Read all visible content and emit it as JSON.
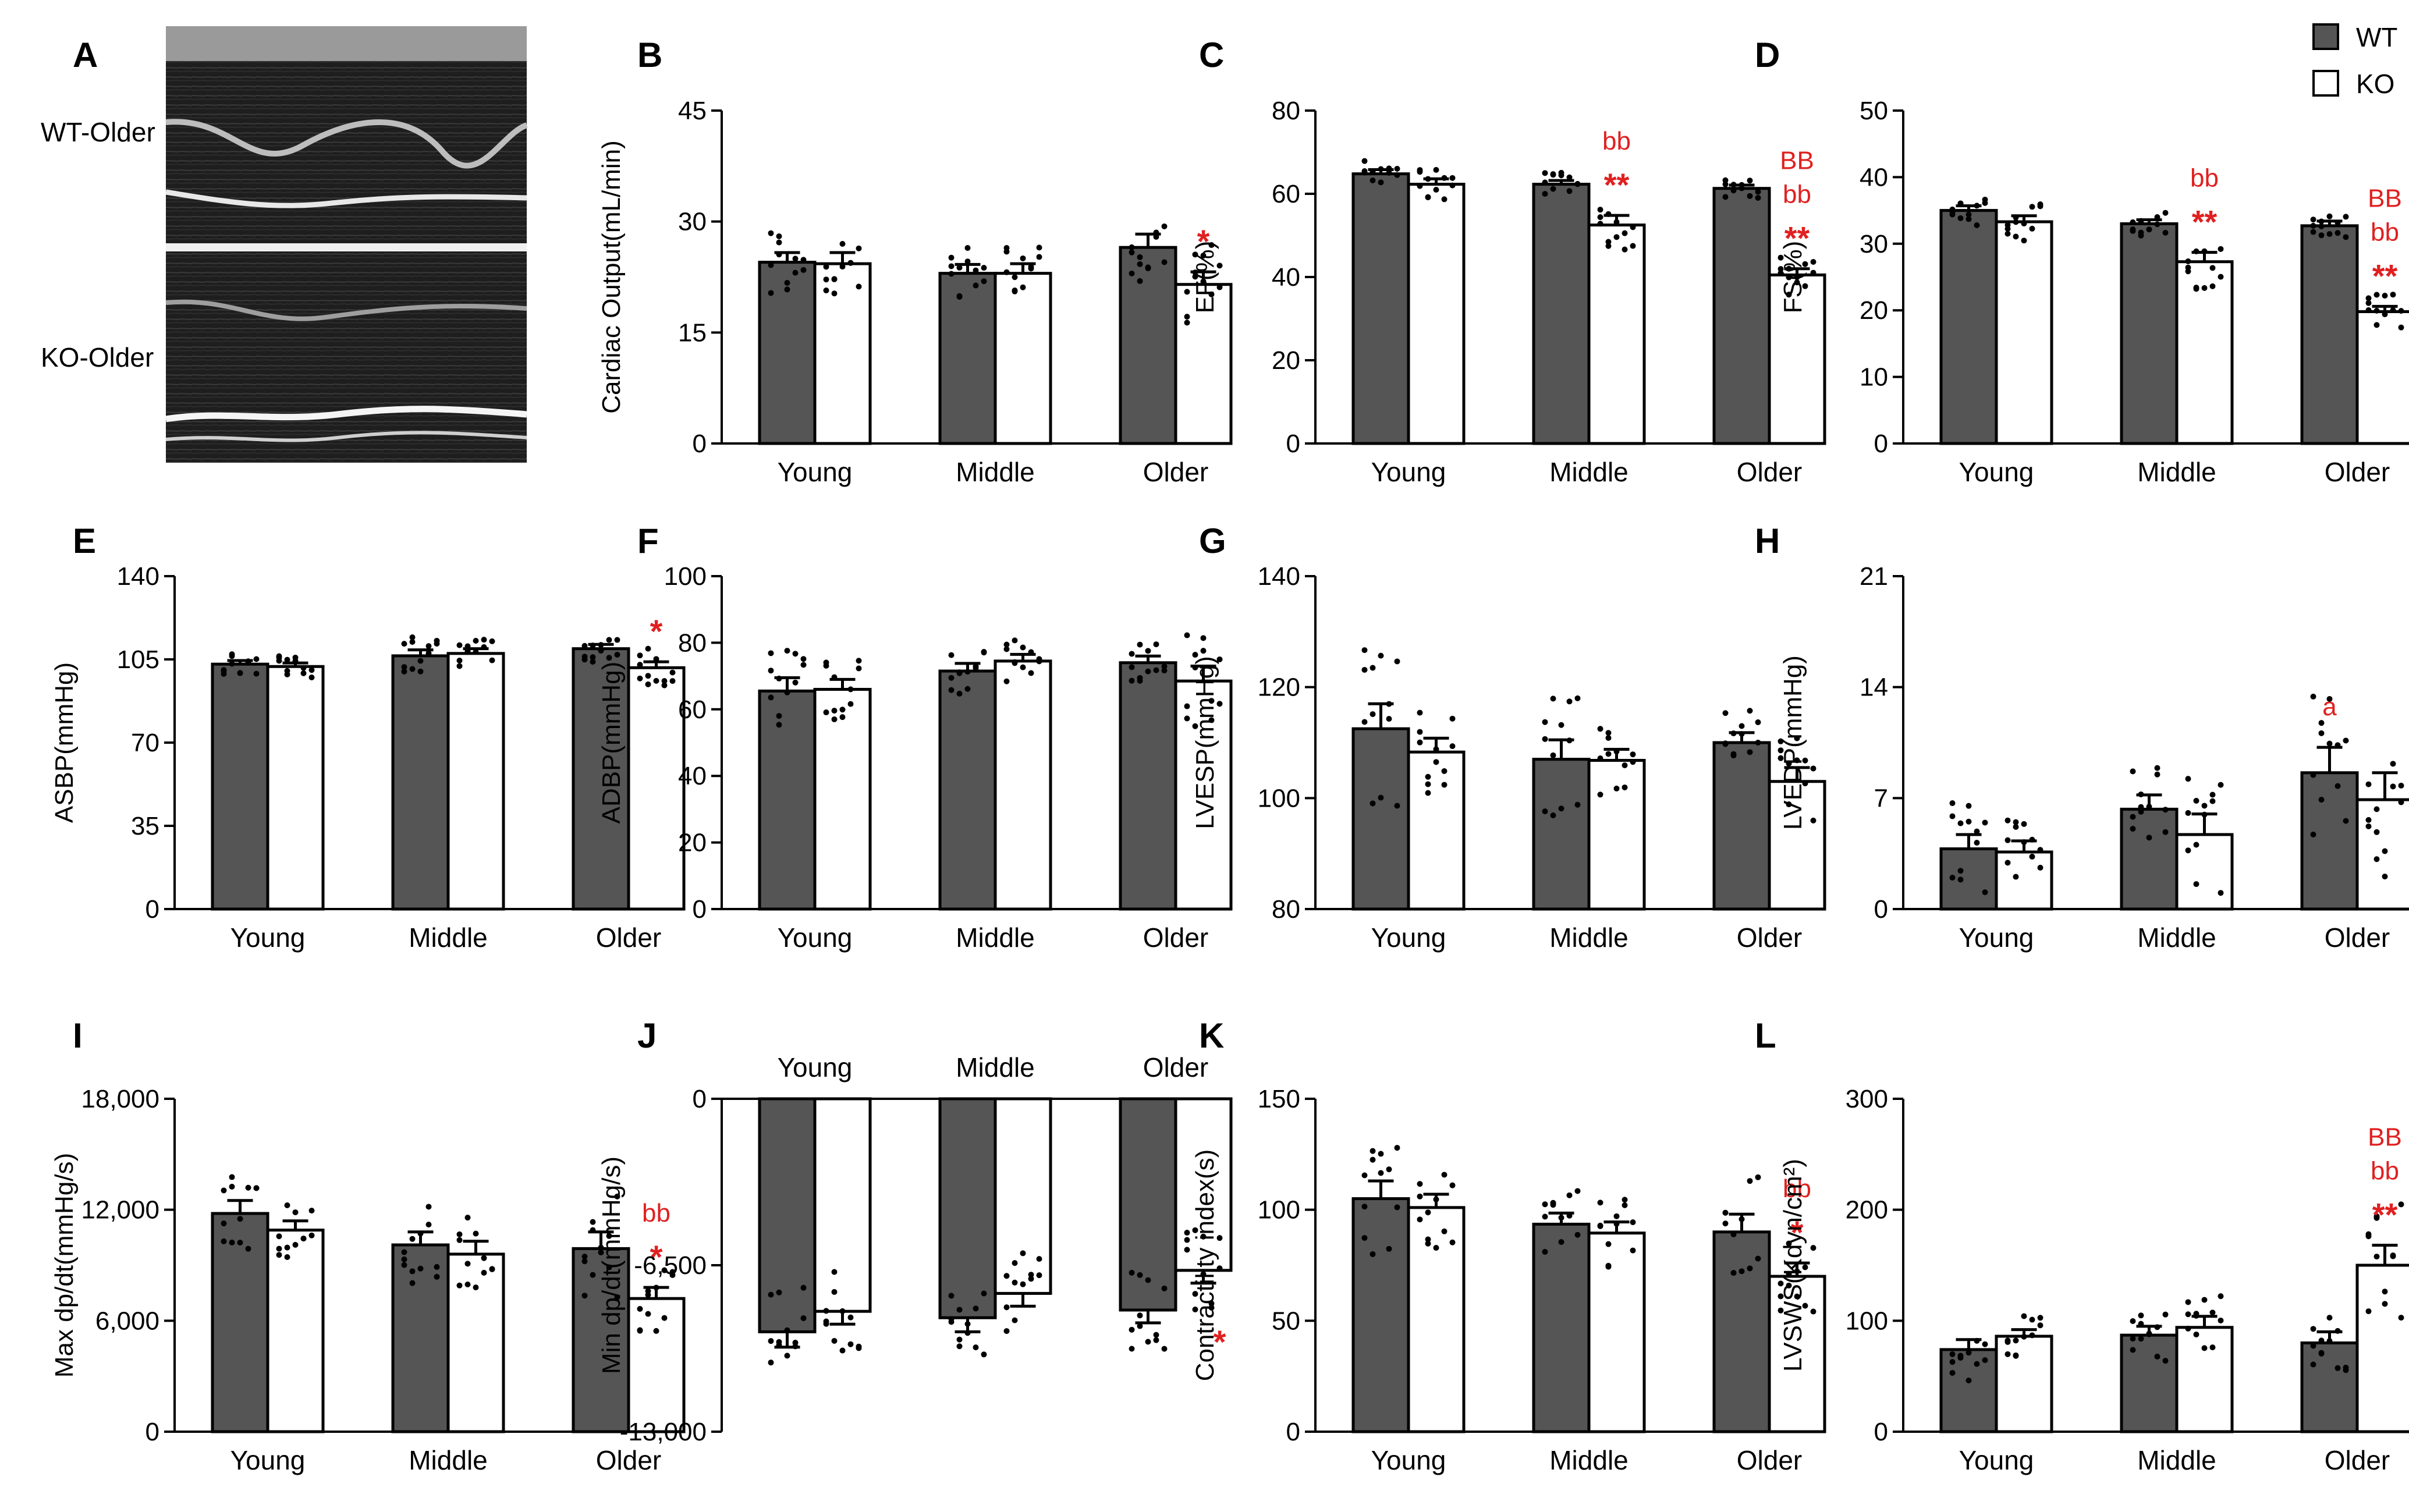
{
  "legend": [
    {
      "name": "WT",
      "color": "#555555"
    },
    {
      "name": "KO",
      "color": "#ffffff"
    }
  ],
  "echo": {
    "letter": "A",
    "labels": [
      "WT-Older",
      "KO-Older"
    ]
  },
  "chart_data": [
    {
      "letter": "B",
      "type": "bar",
      "title": "",
      "ylabel": "Cardiac Output(mL/min)",
      "categories": [
        "Young",
        "Middle",
        "Older"
      ],
      "ylim": [
        0,
        45
      ],
      "yticks": [
        "0",
        "15",
        "30",
        "45"
      ],
      "series": [
        {
          "name": "WT",
          "values": [
            24.5,
            23.0,
            26.5
          ],
          "err": [
            1.3,
            1.2,
            1.8
          ]
        },
        {
          "name": "KO",
          "values": [
            24.3,
            23.0,
            21.5
          ],
          "err": [
            1.5,
            1.3,
            1.7
          ]
        }
      ],
      "annotations": [
        {
          "group": 2,
          "series": 1,
          "lines": [
            "*"
          ]
        }
      ]
    },
    {
      "letter": "C",
      "type": "bar",
      "title": "",
      "ylabel": "EF(%)",
      "categories": [
        "Young",
        "Middle",
        "Older"
      ],
      "ylim": [
        0,
        80
      ],
      "yticks": [
        "0",
        "20",
        "40",
        "60",
        "80"
      ],
      "series": [
        {
          "name": "WT",
          "values": [
            64.8,
            62.3,
            61.3
          ],
          "err": [
            1.0,
            0.9,
            0.8
          ]
        },
        {
          "name": "KO",
          "values": [
            62.3,
            52.5,
            40.5
          ],
          "err": [
            1.3,
            2.3,
            1.5
          ]
        }
      ],
      "annotations": [
        {
          "group": 1,
          "series": 1,
          "lines": [
            "bb",
            "**"
          ]
        },
        {
          "group": 2,
          "series": 1,
          "lines": [
            "BB",
            "bb",
            "**"
          ]
        }
      ]
    },
    {
      "letter": "D",
      "type": "bar",
      "title": "",
      "ylabel": "FS(%)",
      "categories": [
        "Young",
        "Middle",
        "Older"
      ],
      "ylim": [
        0,
        50
      ],
      "yticks": [
        "0",
        "10",
        "20",
        "30",
        "40",
        "50"
      ],
      "series": [
        {
          "name": "WT",
          "values": [
            35.0,
            33.0,
            32.7
          ],
          "err": [
            0.7,
            0.6,
            0.7
          ]
        },
        {
          "name": "KO",
          "values": [
            33.3,
            27.3,
            19.8
          ],
          "err": [
            0.9,
            1.4,
            0.8
          ]
        }
      ],
      "annotations": [
        {
          "group": 1,
          "series": 1,
          "lines": [
            "bb",
            "**"
          ]
        },
        {
          "group": 2,
          "series": 1,
          "lines": [
            "BB",
            "bb",
            "**"
          ]
        }
      ]
    },
    {
      "letter": "E",
      "type": "bar",
      "title": "",
      "ylabel": "ASBP(mmHg)",
      "categories": [
        "Young",
        "Middle",
        "Older"
      ],
      "ylim": [
        0,
        140
      ],
      "yticks": [
        "0",
        "35",
        "70",
        "105",
        "140"
      ],
      "series": [
        {
          "name": "WT",
          "values": [
            103.0,
            106.5,
            109.5
          ],
          "err": [
            1.5,
            2.5,
            1.8
          ]
        },
        {
          "name": "KO",
          "values": [
            102.0,
            107.5,
            101.5
          ],
          "err": [
            1.5,
            2.0,
            2.5
          ]
        }
      ],
      "annotations": [
        {
          "group": 2,
          "series": 1,
          "lines": [
            "*"
          ]
        }
      ]
    },
    {
      "letter": "F",
      "type": "bar",
      "title": "",
      "ylabel": "ADBP(mmHg)",
      "categories": [
        "Young",
        "Middle",
        "Older"
      ],
      "ylim": [
        0,
        100
      ],
      "yticks": [
        "0",
        "20",
        "40",
        "60",
        "80",
        "100"
      ],
      "series": [
        {
          "name": "WT",
          "values": [
            65.5,
            71.5,
            74.0
          ],
          "err": [
            4.0,
            2.3,
            2.0
          ]
        },
        {
          "name": "KO",
          "values": [
            66.0,
            74.5,
            68.5
          ],
          "err": [
            3.0,
            2.0,
            4.5
          ]
        }
      ],
      "annotations": []
    },
    {
      "letter": "G",
      "type": "bar",
      "title": "",
      "ylabel": "LVESP(mmHg)",
      "categories": [
        "Young",
        "Middle",
        "Older"
      ],
      "ylim": [
        80,
        140
      ],
      "yticks": [
        "80",
        "100",
        "120",
        "140"
      ],
      "series": [
        {
          "name": "WT",
          "values": [
            112.5,
            107.0,
            110.0
          ],
          "err": [
            4.5,
            3.5,
            1.8
          ]
        },
        {
          "name": "KO",
          "values": [
            108.3,
            106.8,
            103.0
          ],
          "err": [
            2.5,
            2.0,
            2.5
          ]
        }
      ],
      "annotations": []
    },
    {
      "letter": "H",
      "type": "bar",
      "title": "",
      "ylabel": "LVEDP(mmHg)",
      "categories": [
        "Young",
        "Middle",
        "Older"
      ],
      "ylim": [
        0,
        21
      ],
      "yticks": [
        "0",
        "7",
        "14",
        "21"
      ],
      "series": [
        {
          "name": "WT",
          "values": [
            3.8,
            6.3,
            8.6
          ],
          "err": [
            0.9,
            0.9,
            1.6
          ]
        },
        {
          "name": "KO",
          "values": [
            3.6,
            4.7,
            6.9
          ],
          "err": [
            0.7,
            1.3,
            1.7
          ]
        }
      ],
      "annotations": [
        {
          "group": 2,
          "series": 0,
          "lines": [
            "a"
          ]
        }
      ]
    },
    {
      "letter": "I",
      "type": "bar",
      "title": "",
      "ylabel": "Max dp/dt(mmHg/s)",
      "categories": [
        "Young",
        "Middle",
        "Older"
      ],
      "ylim": [
        0,
        18000
      ],
      "yticks": [
        "0",
        "6,000",
        "12,000",
        "18,000"
      ],
      "series": [
        {
          "name": "WT",
          "values": [
            11800,
            10100,
            9900
          ],
          "err": [
            700,
            700,
            900
          ]
        },
        {
          "name": "KO",
          "values": [
            10900,
            9600,
            7200
          ],
          "err": [
            500,
            700,
            600
          ]
        }
      ],
      "annotations": [
        {
          "group": 2,
          "series": 1,
          "lines": [
            "bb",
            "*"
          ]
        }
      ]
    },
    {
      "letter": "J",
      "type": "bar",
      "title": "",
      "ylabel": "Min dp/dt(mmHg/s)",
      "categories": [
        "Young",
        "Middle",
        "Older"
      ],
      "ylim": [
        -13000,
        0
      ],
      "cat_top": true,
      "yticks": [
        "-13,000",
        "-6,500",
        "0"
      ],
      "series": [
        {
          "name": "WT",
          "values": [
            -9100,
            -8550,
            -8250
          ],
          "err": [
            600,
            550,
            500
          ]
        },
        {
          "name": "KO",
          "values": [
            -8300,
            -7600,
            -6700
          ],
          "err": [
            500,
            500,
            500
          ]
        }
      ],
      "annotations": [
        {
          "group": 2,
          "series": 1,
          "lines": [
            "*"
          ],
          "below": true
        }
      ]
    },
    {
      "letter": "K",
      "type": "bar",
      "title": "",
      "ylabel": "Contractility index(s)",
      "categories": [
        "Young",
        "Middle",
        "Older"
      ],
      "ylim": [
        0,
        150
      ],
      "yticks": [
        "0",
        "50",
        "100",
        "150"
      ],
      "series": [
        {
          "name": "WT",
          "values": [
            105.0,
            93.5,
            90.0
          ],
          "err": [
            8.0,
            5.0,
            8.0
          ]
        },
        {
          "name": "KO",
          "values": [
            101.0,
            89.5,
            70.0
          ],
          "err": [
            6.0,
            5.0,
            6.0
          ]
        }
      ],
      "annotations": [
        {
          "group": 2,
          "series": 1,
          "lines": [
            "bb",
            "*"
          ]
        }
      ]
    },
    {
      "letter": "L",
      "type": "bar",
      "title": "",
      "ylabel": "LVSWS(Kdyn/cm²)",
      "categories": [
        "Young",
        "Middle",
        "Older"
      ],
      "ylim": [
        0,
        300
      ],
      "yticks": [
        "0",
        "100",
        "200",
        "300"
      ],
      "series": [
        {
          "name": "WT",
          "values": [
            74,
            87,
            80
          ],
          "err": [
            9,
            8,
            10
          ]
        },
        {
          "name": "KO",
          "values": [
            86,
            94,
            150
          ],
          "err": [
            6,
            10,
            18
          ]
        }
      ],
      "annotations": [
        {
          "group": 2,
          "series": 1,
          "lines": [
            "BB",
            "bb",
            "**"
          ]
        }
      ]
    }
  ]
}
